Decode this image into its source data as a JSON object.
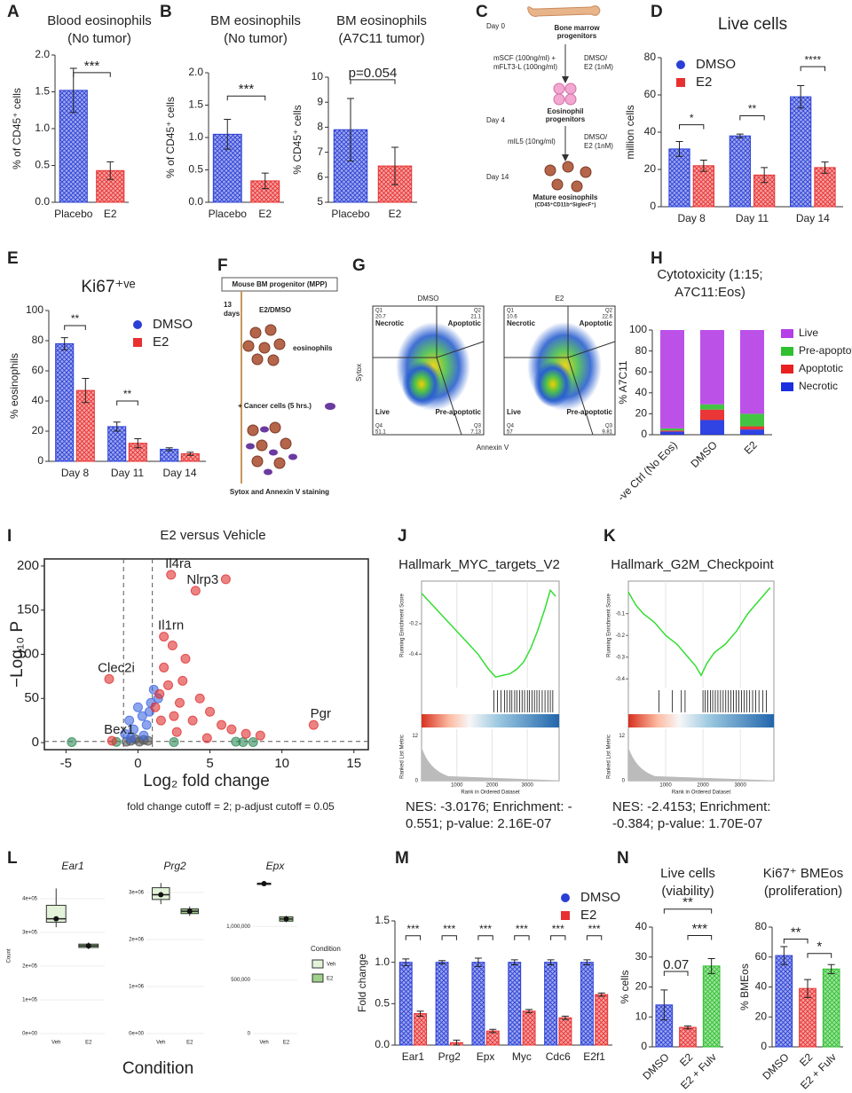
{
  "chart_data": [
    {
      "type": "bar",
      "panel": "A",
      "title": [
        "Blood eosinophils",
        "(No tumor)"
      ],
      "ylabel": "% of CD45⁺ cells",
      "categories": [
        "Placebo",
        "E2"
      ],
      "values": [
        1.52,
        0.43
      ],
      "errors": [
        0.3,
        0.12
      ],
      "colors": [
        "#2a3fd6",
        "#e83030"
      ],
      "ylim": [
        0,
        2
      ],
      "yticks": [
        {
          "value": 0,
          "label": "0.0"
        },
        0.5,
        {
          "value": 1,
          "label": "1.0"
        },
        1.5,
        {
          "value": 2,
          "label": "2.0"
        }
      ],
      "annotations": [
        "***"
      ]
    },
    {
      "type": "bar",
      "panel": "B",
      "title": [
        "BM eosinophils",
        "(No tumor)"
      ],
      "ylabel": "% of CD45⁺ cells",
      "categories": [
        "Placebo",
        "E2"
      ],
      "values": [
        1.05,
        0.33
      ],
      "errors": [
        0.23,
        0.12
      ],
      "colors": [
        "#2a3fd6",
        "#e83030"
      ],
      "ylim": [
        0,
        2
      ],
      "yticks": [
        {
          "value": 0,
          "label": "0.0"
        },
        0.5,
        {
          "value": 1,
          "label": "1.0"
        },
        1.5,
        {
          "value": 2,
          "label": "2.0"
        }
      ],
      "annotations": [
        "***"
      ]
    },
    {
      "type": "bar",
      "title": [
        "BM eosinophils",
        "(A7C11 tumor)"
      ],
      "ylabel": "% CD45⁺ cells",
      "categories": [
        "Placebo",
        "E2"
      ],
      "values": [
        7.9,
        6.45
      ],
      "errors": [
        1.25,
        0.75
      ],
      "colors": [
        "#2a3fd6",
        "#e83030"
      ],
      "ylim": [
        5,
        10
      ],
      "yticks": [
        5,
        6,
        7,
        8,
        9,
        10
      ],
      "annotations": [
        "p=0.054"
      ]
    },
    {
      "type": "bar",
      "panel": "D",
      "title": "Live cells",
      "ylabel": "million cells",
      "categories": [
        "Day 8",
        "Day 11",
        "Day 14"
      ],
      "series": [
        {
          "name": "DMSO",
          "color": "#2a3fd6",
          "values": [
            31,
            38,
            59
          ],
          "errors": [
            4,
            1,
            6
          ]
        },
        {
          "name": "E2",
          "color": "#e83030",
          "values": [
            22,
            17,
            21
          ],
          "errors": [
            3,
            4,
            3
          ]
        }
      ],
      "ylim": [
        0,
        80
      ],
      "yticks": [
        0,
        20,
        40,
        60,
        80
      ],
      "annotations": [
        "*",
        "**",
        "****"
      ]
    },
    {
      "type": "bar",
      "panel": "E",
      "title": "Ki67⁺ᵛᵉ",
      "ylabel": "% eosinophils",
      "categories": [
        "Day 8",
        "Day 11",
        "Day 14"
      ],
      "series": [
        {
          "name": "DMSO",
          "color": "#2a3fd6",
          "values": [
            78,
            23,
            8
          ],
          "errors": [
            4,
            3,
            1
          ]
        },
        {
          "name": "E2",
          "color": "#e83030",
          "values": [
            47,
            12,
            5
          ],
          "errors": [
            8,
            3,
            1
          ]
        }
      ],
      "ylim": [
        0,
        100
      ],
      "yticks": [
        0,
        20,
        40,
        60,
        80,
        100
      ],
      "annotations": [
        "**",
        "**"
      ]
    },
    {
      "type": "bar",
      "stacked": true,
      "panel": "H",
      "title": [
        "Cytotoxicity (1:15;",
        "A7C11:Eos)"
      ],
      "ylabel": "% A7C11",
      "categories": [
        "-ve Ctrl (No Eos)",
        "DMSO",
        "E2"
      ],
      "series": [
        {
          "name": "Live",
          "color": "#b53ee6",
          "values": [
            94,
            71,
            80
          ]
        },
        {
          "name": "Pre-apoptotic",
          "color": "#2fbf2f",
          "values": [
            2,
            5,
            12
          ]
        },
        {
          "name": "Apoptotic",
          "color": "#e82020",
          "values": [
            1,
            10,
            3
          ]
        },
        {
          "name": "Necrotic",
          "color": "#1a2fe0",
          "values": [
            3,
            14,
            5
          ]
        }
      ],
      "ylim": [
        0,
        100
      ],
      "yticks": [
        0,
        20,
        40,
        60,
        80,
        100
      ]
    },
    {
      "type": "scatter",
      "panel": "I",
      "title": "E2 versus Vehicle",
      "xlabel": "Log₂ fold change",
      "ylabel": "−Log₁₀ P",
      "note": "fold change cutoff = 2; p-adjust cutoff = 0.05",
      "xlim": [
        -6.5,
        16
      ],
      "xticks": [
        -5,
        0,
        5,
        10,
        15
      ],
      "ylim": [
        -8,
        208
      ],
      "yticks": [
        0,
        50,
        100,
        150,
        200
      ],
      "vlines": [
        -1,
        1
      ],
      "hline": 1.3,
      "series": [
        {
          "color": "#e03030",
          "x": [
            2.3,
            4.0,
            1.8,
            -2.0,
            12.2,
            -1.8
          ],
          "values": [
            190,
            172,
            120,
            72,
            20,
            2
          ],
          "labels": [
            "Il4ra",
            "Nlrp3",
            "Il1rn",
            "Clec2i",
            "Pgr",
            "Bex1"
          ]
        },
        {
          "color": "#e03030",
          "x": [
            1.2,
            1.5,
            1.8,
            2.1,
            2.5,
            2.9,
            3.3,
            3.8,
            4.3,
            5,
            5.8,
            6.5,
            7.5,
            8.5,
            2.4,
            3.1,
            1.6,
            2.7,
            4.8,
            6.1
          ],
          "values": [
            40,
            55,
            85,
            65,
            30,
            45,
            95,
            25,
            50,
            35,
            20,
            15,
            10,
            8,
            110,
            70,
            25,
            12,
            5,
            185
          ]
        },
        {
          "color": "#4169e1",
          "x": [
            -0.9,
            -0.6,
            -0.3,
            0,
            0.3,
            0.6,
            0.9,
            -0.5,
            0.4,
            0.8,
            1.1,
            1.4
          ],
          "values": [
            10,
            25,
            15,
            40,
            30,
            20,
            45,
            5,
            8,
            35,
            60,
            50
          ]
        },
        {
          "color": "#555555",
          "x": [
            -0.5,
            -0.2,
            0.1,
            0.4,
            -0.8,
            0.7
          ],
          "values": [
            2,
            4,
            1,
            3,
            1,
            2
          ]
        },
        {
          "color": "#2e8b57",
          "x": [
            -4.6,
            -1.5,
            2.5,
            6.8,
            7.3,
            8
          ],
          "values": [
            0.5,
            0.8,
            0.5,
            1,
            0.5,
            0.5
          ]
        }
      ]
    },
    {
      "type": "line",
      "panel": "J",
      "title": "Hallmark_MYC_targets_V2",
      "ylabel": "Running Enrichment Score",
      "y2label": "Ranked List Metric",
      "xlabel": "Rank in Ordered Dataset",
      "x": [
        0,
        400,
        800,
        1200,
        1600,
        1900,
        2100,
        2300,
        2500,
        2700,
        2900,
        3100,
        3300,
        3500,
        3650,
        3800
      ],
      "values": [
        0,
        -0.1,
        -0.2,
        -0.3,
        -0.4,
        -0.5,
        -0.551,
        -0.54,
        -0.53,
        -0.5,
        -0.45,
        -0.36,
        -0.24,
        -0.1,
        0.02,
        -0.02
      ],
      "color": "#33dd33",
      "xlim": [
        0,
        3900
      ],
      "xticks": [
        1000,
        2000,
        3000
      ],
      "ylim": [
        -0.62,
        0.08
      ],
      "yticks": [
        -0.4,
        -0.2
      ],
      "y2ticks": [
        0,
        12
      ],
      "hits": [
        2050,
        2150,
        2250,
        2350,
        2420,
        2500,
        2560,
        2640,
        2700,
        2780,
        2850,
        2920,
        3000,
        3060,
        3130,
        3200,
        3270,
        3340,
        3420,
        3500,
        3580,
        3650,
        3720
      ],
      "note": [
        "NES: -3.0176; Enrichment: -",
        "0.551; p-value: 2.16E-07"
      ]
    },
    {
      "type": "line",
      "panel": "K",
      "title": "Hallmark_G2M_Checkpoint",
      "ylabel": "Running Enrichment Score",
      "y2label": "Ranked List Metric",
      "xlabel": "Rank in Ordered Dataset",
      "x": [
        0,
        200,
        400,
        700,
        1000,
        1300,
        1600,
        1800,
        1950,
        2100,
        2300,
        2600,
        2900,
        3200,
        3500,
        3800
      ],
      "values": [
        0,
        -0.06,
        -0.1,
        -0.14,
        -0.2,
        -0.24,
        -0.3,
        -0.34,
        -0.384,
        -0.33,
        -0.28,
        -0.24,
        -0.18,
        -0.1,
        -0.04,
        0.02
      ],
      "color": "#33dd33",
      "xlim": [
        0,
        3900
      ],
      "xticks": [
        1000,
        2000,
        3000
      ],
      "ylim": [
        -0.44,
        0.05
      ],
      "yticks": [
        -0.4,
        -0.3,
        -0.2,
        -0.1
      ],
      "y2ticks": [
        0,
        12
      ],
      "hits": [
        820,
        1180,
        1420,
        1520,
        2000,
        2060,
        2130,
        2200,
        2260,
        2330,
        2400,
        2470,
        2540,
        2610,
        2680,
        2750,
        2820,
        2890,
        2960,
        3030,
        3100,
        3170,
        3250,
        3330,
        3410,
        3500,
        3600,
        3700
      ],
      "note": [
        "NES: -2.4153; Enrichment:",
        "-0.384; p-value: 1.70E-07"
      ]
    },
    {
      "type": "box",
      "panel": "L",
      "title": "Ear1",
      "ylabel": "Count",
      "xlabel": "Condition",
      "categories": [
        "Veh",
        "E2"
      ],
      "colors": [
        "#e3f3d9",
        "#9ed18a"
      ],
      "values": [
        [
          315000,
          330000,
          340000,
          380000,
          430000
        ],
        [
          250000,
          255000,
          260000,
          265000,
          270000
        ]
      ],
      "ylim": [
        0,
        460000
      ],
      "yticks": [
        {
          "value": 0,
          "label": "0e+00"
        },
        {
          "value": 100000,
          "label": "1e+05"
        },
        {
          "value": 200000,
          "label": "2e+05"
        },
        {
          "value": 300000,
          "label": "3e+05"
        },
        {
          "value": 400000,
          "label": "4e+05"
        }
      ]
    },
    {
      "type": "box",
      "title": "Prg2",
      "categories": [
        "Veh",
        "E2"
      ],
      "colors": [
        "#e3f3d9",
        "#9ed18a"
      ],
      "values": [
        [
          2750000,
          2850000,
          2950000,
          3100000,
          3200000
        ],
        [
          2500000,
          2550000,
          2600000,
          2650000,
          2700000
        ]
      ],
      "ylim": [
        0,
        3300000
      ],
      "yticks": [
        {
          "value": 0,
          "label": "0e+00"
        },
        {
          "value": 1000000,
          "label": "1e+06"
        },
        {
          "value": 2000000,
          "label": "2e+06"
        },
        {
          "value": 3000000,
          "label": "3e+06"
        }
      ]
    },
    {
      "type": "box",
      "title": "Epx",
      "legend_title": "Condition",
      "categories": [
        "Veh",
        "E2"
      ],
      "colors": [
        "#e3f3d9",
        "#9ed18a"
      ],
      "values": [
        [
          1390000,
          1392000,
          1400000,
          1405000,
          1410000
        ],
        [
          1040000,
          1050000,
          1070000,
          1090000,
          1100000
        ]
      ],
      "ylim": [
        0,
        1450000
      ],
      "yticks": [
        0,
        {
          "value": 500000,
          "label": "500,000"
        },
        {
          "value": 1000000,
          "label": "1,000,000"
        }
      ]
    },
    {
      "type": "bar",
      "panel": "M",
      "ylabel": "Fold change",
      "categories": [
        "Ear1",
        "Prg2",
        "Epx",
        "Myc",
        "Cdc6",
        "E2f1"
      ],
      "series": [
        {
          "name": "DMSO",
          "color": "#2a3fd6",
          "values": [
            1,
            1,
            1,
            1,
            1,
            1
          ],
          "errors": [
            0.04,
            0.02,
            0.05,
            0.03,
            0.03,
            0.03
          ]
        },
        {
          "name": "E2",
          "color": "#e83030",
          "values": [
            0.38,
            0.03,
            0.17,
            0.41,
            0.33,
            0.61
          ],
          "errors": [
            0.03,
            0.03,
            0.02,
            0.02,
            0.02,
            0.02
          ]
        }
      ],
      "ylim": [
        0,
        1.5
      ],
      "yticks": [
        {
          "value": 0,
          "label": "0.0"
        },
        0.5,
        {
          "value": 1,
          "label": "1.0"
        },
        1.5
      ],
      "annotations": [
        "***",
        "***",
        "***",
        "***",
        "***",
        "***"
      ]
    },
    {
      "type": "bar",
      "panel": "N",
      "title": [
        "Live cells",
        "(viability)"
      ],
      "ylabel": "% cells",
      "categories": [
        "DMSO",
        "E2",
        "E2 + Fulv"
      ],
      "values": [
        14,
        6.5,
        27
      ],
      "errors": [
        5,
        0.5,
        2.5
      ],
      "colors": [
        "#2a3fd6",
        "#e83030",
        "#2fbf2f"
      ],
      "ylim": [
        0,
        40
      ],
      "yticks": [
        0,
        10,
        20,
        30,
        40
      ],
      "annotations": [
        "**",
        "***",
        "0.07"
      ]
    },
    {
      "type": "bar",
      "title": [
        "Ki67⁺ BMEos",
        "(proliferation)"
      ],
      "ylabel": "% BMEos",
      "categories": [
        "DMSO",
        "E2",
        "E2 + Fulv"
      ],
      "values": [
        61,
        39,
        52
      ],
      "errors": [
        6,
        6,
        3
      ],
      "colors": [
        "#2a3fd6",
        "#e83030",
        "#2fbf2f"
      ],
      "ylim": [
        0,
        80
      ],
      "yticks": [
        0,
        20,
        40,
        60,
        80
      ],
      "annotations": [
        "**",
        "*"
      ]
    }
  ],
  "diagrams": {
    "c": {
      "panel": "C",
      "day0": "Day 0",
      "progenitors": [
        "Bone marrow",
        "progenitors"
      ],
      "media1": [
        "mSCF (100ng/ml) +",
        "mFLT3-L (100ng/ml)"
      ],
      "treat1": [
        "DMSO/",
        "E2 (1nM)"
      ],
      "eos_prog": [
        "Eosinophil",
        "progenitors"
      ],
      "day4": "Day 4",
      "media2": "mIL5 (10ng/ml)",
      "treat2": [
        "DMSO/",
        "E2 (1nM)"
      ],
      "day14": "Day 14",
      "mature": "Mature eosinophils",
      "markers": "(CD45⁺CD11b⁺SiglecF⁺)"
    },
    "f": {
      "panel": "F",
      "box": "Mouse BM progenitor (MPP)",
      "days": [
        "13",
        "days"
      ],
      "treat": "E2/DMSO",
      "eos": "eosinophils",
      "cancer": "+ Cancer cells (5 hrs.)",
      "stain": "Sytox and Annexin V staining"
    },
    "g": {
      "panel": "G",
      "yaxis": "Sytox",
      "xaxis": "Annexin V",
      "quadrants": [
        "Necrotic",
        "Apoptotic",
        "Live",
        "Pre-apoptotic"
      ],
      "plots": [
        {
          "title": "DMSO",
          "q": [
            {
              "label": "Q1",
              "value": 20.7
            },
            {
              "label": "Q2",
              "value": 21.1
            },
            {
              "label": "Q4",
              "value": 51.1
            },
            {
              "label": "Q3",
              "value": 7.13
            }
          ]
        },
        {
          "title": "E2",
          "q": [
            {
              "label": "Q1",
              "value": 10.6
            },
            {
              "label": "Q2",
              "value": 22.6
            },
            {
              "label": "Q4",
              "value": 57.0
            },
            {
              "label": "Q3",
              "value": 9.81
            }
          ]
        }
      ]
    }
  }
}
